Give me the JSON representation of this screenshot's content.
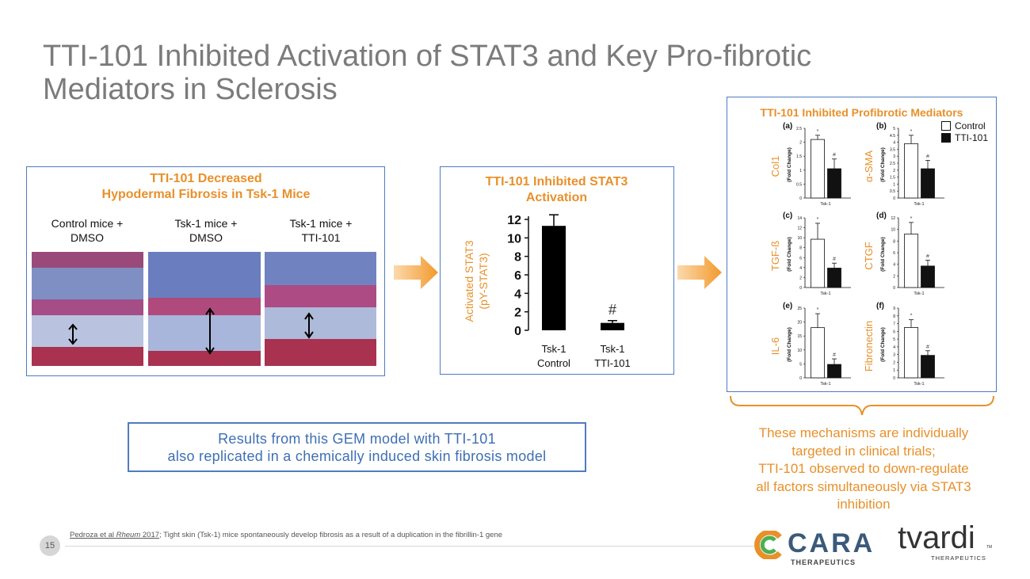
{
  "slide": {
    "title_line1": "TTI-101 Inhibited Activation of STAT3 and Key Pro-fibrotic",
    "title_line2": "Mediators in Sclerosis",
    "page_number": "15"
  },
  "fibrosis_panel": {
    "title_line1": "TTI-101 Decreased",
    "title_line2": "Hypodermal Fibrosis in Tsk-1 Mice",
    "images": [
      {
        "label_line1": "Control mice +",
        "label_line2": "DMSO"
      },
      {
        "label_line1": "Tsk-1 mice +",
        "label_line2": "DMSO"
      },
      {
        "label_line1": "Tsk-1 mice +",
        "label_line2": "TTI-101"
      }
    ]
  },
  "stat3_panel": {
    "title_line1": "TTI-101 Inhibited STAT3",
    "title_line2": "Activation",
    "ylabel_line1": "Activated STAT3",
    "ylabel_line2": "(pY-STAT3)",
    "significance": "#"
  },
  "mediators_panel": {
    "title": "TTI-101 Inhibited Profibrotic Mediators",
    "legend": {
      "control": "Control",
      "treated": "TTI-101"
    }
  },
  "chart_data": [
    {
      "type": "bar",
      "title": "TTI-101 Inhibited STAT3 Activation",
      "ylabel": "Activated STAT3 (pY-STAT3)",
      "categories": [
        [
          "Tsk-1",
          "Control"
        ],
        [
          "Tsk-1",
          "TTI-101"
        ]
      ],
      "values": [
        11.3,
        0.8
      ],
      "errors": [
        1.2,
        0.25
      ],
      "ylim": [
        0,
        12
      ],
      "yticks": [
        "0",
        "2",
        "4",
        "6",
        "8",
        "10",
        "12"
      ],
      "annotations": [
        "",
        "#"
      ]
    },
    {
      "type": "bar",
      "panel": "(a)",
      "marker": "Col1",
      "ylabel": "(Fold Change)",
      "xlabel": "Tsk-1",
      "series": [
        {
          "name": "Control",
          "values": [
            2.1
          ]
        },
        {
          "name": "TTI-101",
          "values": [
            1.05
          ]
        }
      ],
      "errors": [
        0.15,
        0.35
      ],
      "ylim": [
        0,
        2.5
      ],
      "yticks": [
        "0",
        "0.5",
        "1",
        "1.5",
        "2",
        "2.5"
      ]
    },
    {
      "type": "bar",
      "panel": "(b)",
      "marker": "α-SMA",
      "ylabel": "(Fold Change)",
      "xlabel": "Tsk-1",
      "series": [
        {
          "name": "Control",
          "values": [
            3.9
          ]
        },
        {
          "name": "TTI-101",
          "values": [
            2.1
          ]
        }
      ],
      "errors": [
        0.6,
        0.6
      ],
      "ylim": [
        0,
        5
      ],
      "yticks": [
        "0",
        "0.5",
        "1",
        "1.5",
        "2",
        "2.5",
        "3",
        "3.5",
        "4",
        "4.5",
        "5"
      ]
    },
    {
      "type": "bar",
      "panel": "(c)",
      "marker": "TGF-ß",
      "ylabel": "(Fold Change)",
      "xlabel": "Tsk-1",
      "series": [
        {
          "name": "Control",
          "values": [
            9.7
          ]
        },
        {
          "name": "TTI-101",
          "values": [
            3.9
          ]
        }
      ],
      "errors": [
        3.2,
        1.0
      ],
      "ylim": [
        0,
        14
      ],
      "yticks": [
        "0",
        "2",
        "4",
        "6",
        "8",
        "10",
        "12",
        "14"
      ]
    },
    {
      "type": "bar",
      "panel": "(d)",
      "marker": "CTGF",
      "ylabel": "(Fold Change)",
      "xlabel": "Tsk-1",
      "series": [
        {
          "name": "Control",
          "values": [
            9.2
          ]
        },
        {
          "name": "TTI-101",
          "values": [
            3.7
          ]
        }
      ],
      "errors": [
        2.0,
        1.0
      ],
      "ylim": [
        0,
        12
      ],
      "yticks": [
        "0",
        "2",
        "4",
        "6",
        "8",
        "10",
        "12"
      ]
    },
    {
      "type": "bar",
      "panel": "(e)",
      "marker": "IL-6",
      "ylabel": "(Fold Change)",
      "xlabel": "Tsk-1",
      "series": [
        {
          "name": "Control",
          "values": [
            18
          ]
        },
        {
          "name": "TTI-101",
          "values": [
            4.8
          ]
        }
      ],
      "errors": [
        5,
        2
      ],
      "ylim": [
        0,
        25
      ],
      "yticks": [
        "0",
        "5",
        "10",
        "15",
        "20",
        "25"
      ]
    },
    {
      "type": "bar",
      "panel": "(f)",
      "marker": "Fibronectin",
      "ylabel": "(Fold Change)",
      "xlabel": "Tsk-1",
      "series": [
        {
          "name": "Control",
          "values": [
            6.5
          ]
        },
        {
          "name": "TTI-101",
          "values": [
            2.9
          ]
        }
      ],
      "errors": [
        1.0,
        0.6
      ],
      "ylim": [
        0,
        9
      ],
      "yticks": [
        "0",
        "1",
        "2",
        "3",
        "4",
        "5",
        "6",
        "7",
        "8",
        "9"
      ]
    }
  ],
  "results_box": {
    "line1": "Results from this GEM model with TTI-101",
    "line2": "also replicated in a chemically induced skin fibrosis model"
  },
  "mechanisms_text": {
    "line1": "These mechanisms are individually",
    "line2": "targeted in clinical trials;",
    "line3": "TTI-101 observed to down-regulate",
    "line4": "all factors simultaneously via STAT3",
    "line5": "inhibition"
  },
  "footnote": {
    "ref_author": "Pedroza et al",
    "ref_journal": "Rheum",
    "ref_year": "2017",
    "text": "; Tight skin (Tsk-1) mice spontaneously develop fibrosis as a result of a duplication in the fibrillin-1 gene"
  },
  "logos": {
    "cara_name": "CARA",
    "cara_sub": "THERAPEUTICS",
    "tvardi_name": "tvardi",
    "tvardi_tm": "TM",
    "tvardi_sub": "THERAPEUTICS"
  },
  "colors": {
    "accent_orange": "#e8902a",
    "panel_border": "#4f7cbf",
    "results_text": "#3e6fb3",
    "title_gray": "#7b7b7b"
  },
  "icons": [
    "right-arrow-icon",
    "right-arrow-icon",
    "brace-icon",
    "cara-logo-icon"
  ]
}
